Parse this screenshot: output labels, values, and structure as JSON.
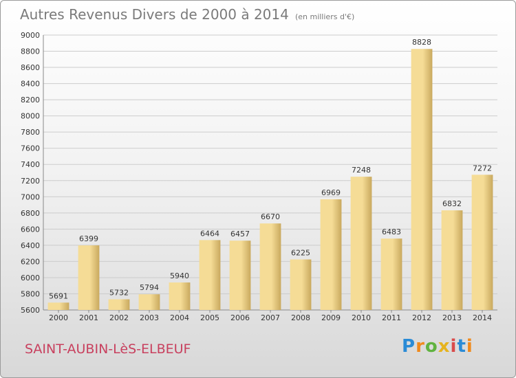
{
  "header": {
    "title": "Autres Revenus Divers de 2000 à 2014",
    "unit": "(en milliers d'€)"
  },
  "footer": {
    "city": "SAINT-AUBIN-LèS-ELBEUF",
    "logo": [
      "P",
      "r",
      "o",
      "x",
      "i",
      "t",
      "i"
    ]
  },
  "colors": {
    "bar_light": "#f5dc96",
    "bar_dark": "#c9a95e",
    "grid": "#cccccc",
    "title": "#7a7a7a",
    "city": "#c8405e"
  },
  "chart_data": {
    "type": "bar",
    "title": "Autres Revenus Divers de 2000 à 2014",
    "subtitle": "(en milliers d'€)",
    "xlabel": "",
    "ylabel": "",
    "categories": [
      "2000",
      "2001",
      "2002",
      "2003",
      "2004",
      "2005",
      "2006",
      "2007",
      "2008",
      "2009",
      "2010",
      "2011",
      "2012",
      "2013",
      "2014"
    ],
    "values": [
      5691,
      6399,
      5732,
      5794,
      5940,
      6464,
      6457,
      6670,
      6225,
      6969,
      7248,
      6483,
      8828,
      6832,
      7272
    ],
    "ylim": [
      5600,
      9000
    ],
    "yticks": [
      5600,
      5800,
      6000,
      6200,
      6400,
      6600,
      6800,
      7000,
      7200,
      7400,
      7600,
      7800,
      8000,
      8200,
      8400,
      8600,
      8800,
      9000
    ],
    "grid": true,
    "data_labels": true
  }
}
